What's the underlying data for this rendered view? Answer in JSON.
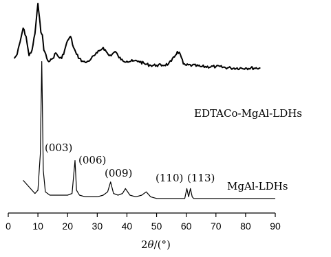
{
  "chart_data": {
    "type": "line",
    "title": "",
    "xlabel_prefix": "2",
    "xlabel_var": "θ",
    "xlabel_unit": "/(°)",
    "ylabel": "",
    "xlim": [
      0,
      90
    ],
    "x_ticks": [
      "0",
      "10",
      "20",
      "30",
      "40",
      "50",
      "60",
      "70",
      "80",
      "90"
    ],
    "x_tick_values": [
      0,
      10,
      20,
      30,
      40,
      50,
      60,
      70,
      80,
      90
    ],
    "grid": false,
    "series": [
      {
        "name": "EDTACo-MgAl-LDHs",
        "color": "#000000",
        "x": [
          2,
          3,
          4,
          5,
          6,
          7,
          8,
          9,
          10,
          10.5,
          11,
          11.5,
          12,
          13,
          14,
          15,
          16,
          17,
          18,
          19,
          20,
          21,
          22,
          23,
          24,
          25,
          26,
          27,
          28,
          29,
          30,
          31,
          32,
          33,
          34,
          35,
          36,
          37,
          38,
          40,
          42,
          44,
          46,
          48,
          50,
          52,
          54,
          55,
          56,
          57,
          58,
          59,
          60,
          62,
          65,
          70,
          75,
          80,
          85
        ],
        "y": [
          0.6,
          0.63,
          0.72,
          0.82,
          0.76,
          0.62,
          0.66,
          0.78,
          1.0,
          0.9,
          0.79,
          0.77,
          0.66,
          0.6,
          0.58,
          0.6,
          0.64,
          0.61,
          0.6,
          0.66,
          0.73,
          0.76,
          0.68,
          0.63,
          0.6,
          0.58,
          0.57,
          0.58,
          0.6,
          0.62,
          0.64,
          0.66,
          0.68,
          0.65,
          0.62,
          0.63,
          0.65,
          0.62,
          0.59,
          0.58,
          0.58,
          0.58,
          0.56,
          0.55,
          0.55,
          0.55,
          0.56,
          0.58,
          0.61,
          0.65,
          0.63,
          0.56,
          0.55,
          0.55,
          0.54,
          0.54,
          0.53,
          0.53,
          0.53
        ]
      },
      {
        "name": "MgAl-LDHs",
        "color": "#000000",
        "x": [
          5,
          7,
          9,
          10,
          10.8,
          11.3,
          11.8,
          12.5,
          14,
          16,
          18,
          20,
          21.5,
          22.5,
          23,
          24,
          26,
          28,
          30,
          32,
          33.5,
          34.5,
          35.5,
          37,
          38.5,
          39.5,
          41,
          43,
          45,
          46.5,
          48,
          50,
          52,
          54,
          56,
          58,
          59.5,
          60.2,
          60.8,
          61.4,
          62,
          62.5,
          64,
          66,
          70,
          75,
          80,
          85,
          90
        ],
        "y": [
          0.14,
          0.1,
          0.06,
          0.08,
          0.3,
          0.86,
          0.2,
          0.07,
          0.05,
          0.05,
          0.05,
          0.05,
          0.06,
          0.26,
          0.08,
          0.05,
          0.04,
          0.04,
          0.04,
          0.05,
          0.07,
          0.13,
          0.06,
          0.05,
          0.06,
          0.09,
          0.05,
          0.04,
          0.05,
          0.07,
          0.04,
          0.03,
          0.03,
          0.03,
          0.03,
          0.03,
          0.03,
          0.09,
          0.04,
          0.09,
          0.04,
          0.03,
          0.03,
          0.03,
          0.03,
          0.03,
          0.03,
          0.03,
          0.03
        ]
      }
    ],
    "annotations": [
      {
        "text": "(003)",
        "x": 11.3,
        "y": 0.86
      },
      {
        "text": "(006)",
        "x": 22.8,
        "y": 0.26
      },
      {
        "text": "(009)",
        "x": 34.5,
        "y": 0.13
      },
      {
        "text": "(110)",
        "x": 60.2,
        "y": 0.09
      },
      {
        "text": "(113)",
        "x": 61.4,
        "y": 0.09
      }
    ]
  }
}
